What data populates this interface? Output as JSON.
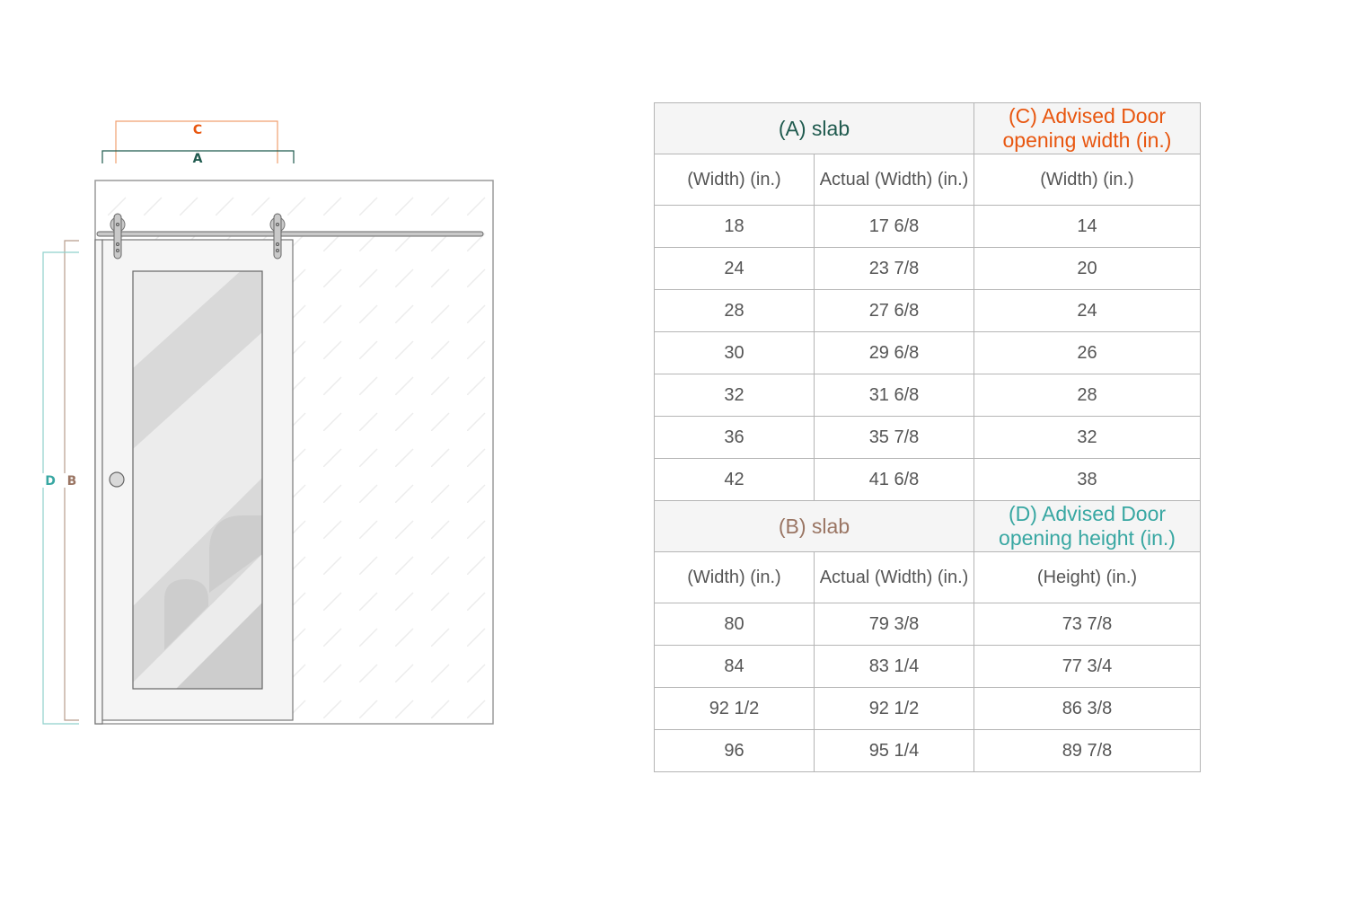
{
  "colors": {
    "A": "#1f5a4e",
    "B": "#9a7563",
    "C": "#e8560f",
    "D": "#38a7a2"
  },
  "diagram": {
    "labels": {
      "A": "A",
      "B": "B",
      "C": "C",
      "D": "D"
    }
  },
  "width_table": {
    "slab_header": "(A) slab",
    "advised_header": "(C) Advised Door opening width (in.)",
    "columns": [
      "(Width) (in.)",
      "Actual (Width) (in.)",
      "(Width) (in.)"
    ],
    "rows": [
      [
        "18",
        "17 6/8",
        "14"
      ],
      [
        "24",
        "23 7/8",
        "20"
      ],
      [
        "28",
        "27 6/8",
        "24"
      ],
      [
        "30",
        "29 6/8",
        "26"
      ],
      [
        "32",
        "31 6/8",
        "28"
      ],
      [
        "36",
        "35 7/8",
        "32"
      ],
      [
        "42",
        "41 6/8",
        "38"
      ]
    ]
  },
  "height_table": {
    "slab_header": "(B) slab",
    "advised_header": "(D) Advised Door opening height (in.)",
    "columns": [
      "(Width) (in.)",
      "Actual (Width) (in.)",
      "(Height) (in.)"
    ],
    "rows": [
      [
        "80",
        "79 3/8",
        "73 7/8"
      ],
      [
        "84",
        "83 1/4",
        "77 3/4"
      ],
      [
        "92 1/2",
        "92 1/2",
        "86 3/8"
      ],
      [
        "96",
        "95 1/4",
        "89 7/8"
      ]
    ]
  }
}
